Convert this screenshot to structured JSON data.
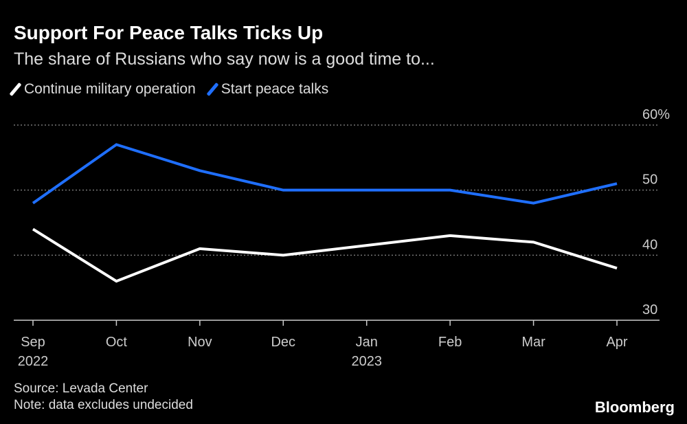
{
  "chart_data": {
    "type": "line",
    "title": "Support For Peace Talks Ticks Up",
    "subtitle": "The share of Russians who say now is a good time to...",
    "categories": [
      [
        "Sep",
        "2022"
      ],
      [
        "Oct",
        ""
      ],
      [
        "Nov",
        ""
      ],
      [
        "Dec",
        ""
      ],
      [
        "Jan",
        "2023"
      ],
      [
        "Feb",
        ""
      ],
      [
        "Mar",
        ""
      ],
      [
        "Apr",
        ""
      ]
    ],
    "series": [
      {
        "name": "Continue military operation",
        "color": "#ffffff",
        "values": [
          44,
          36,
          41,
          40,
          41.5,
          43,
          42,
          38
        ]
      },
      {
        "name": "Start peace talks",
        "color": "#1f6fff",
        "values": [
          48,
          57,
          53,
          50,
          50,
          50,
          48,
          51
        ]
      }
    ],
    "ylim": [
      30,
      60
    ],
    "yticks": [
      {
        "v": 60,
        "label": "60%"
      },
      {
        "v": 50,
        "label": "50"
      },
      {
        "v": 40,
        "label": "40"
      },
      {
        "v": 30,
        "label": "30"
      }
    ],
    "grid": true,
    "legend": "top-left"
  },
  "footer": {
    "source": "Source: Levada Center",
    "note": "Note: data excludes undecided",
    "brand": "Bloomberg"
  }
}
